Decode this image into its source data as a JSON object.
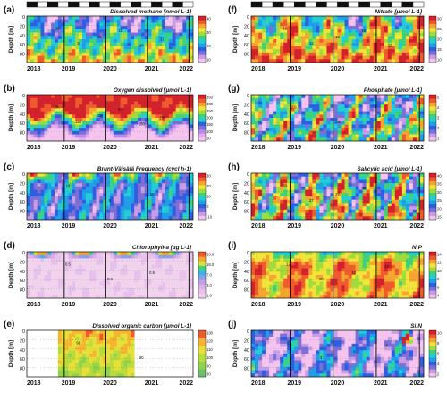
{
  "figure": {
    "season_bar": {
      "segments": 16,
      "colors": [
        "#111111",
        "#ffffff"
      ]
    },
    "y_label": "Depth [m]",
    "depth_ticks": [
      "0",
      "20",
      "40",
      "60",
      "80"
    ],
    "years": [
      "2018",
      "2019",
      "2020",
      "2021",
      "2022"
    ]
  },
  "chart_data": [
    {
      "type": "heatmap",
      "letter": "(a)",
      "title": "Dissolved methane [nmol L-1]",
      "palette": "jet",
      "colorbar_ticks": [
        "40",
        "30",
        "20",
        "10"
      ],
      "contour_labels": [
        "20",
        "5",
        "25",
        "15",
        "40",
        "15"
      ],
      "events_x": [
        2018.9,
        2019.9,
        2020.9,
        2021.9
      ],
      "ylim": [
        100,
        0
      ]
    },
    {
      "type": "heatmap",
      "letter": "(b)",
      "title": "Oxygen dissolved [µmol L-1]",
      "palette": "oxy",
      "colorbar_ticks": [
        "350",
        "300",
        "250",
        "200",
        "150",
        "100",
        "50"
      ],
      "contour_labels": [
        "200",
        "150",
        "100",
        "0.5",
        "150",
        "100"
      ],
      "events_x": [
        2018.9,
        2019.9,
        2020.9,
        2021.9
      ],
      "ylim": [
        100,
        0
      ]
    },
    {
      "type": "heatmap",
      "letter": "(c)",
      "title": "Brunt-Väisälä Frequency (cycl h-1)",
      "palette": "jet",
      "colorbar_ticks": [
        "30",
        "20",
        "10",
        "0",
        "-10"
      ],
      "contour_labels": [
        "10",
        "5",
        "10"
      ],
      "events_x": [
        2018.9,
        2019.9,
        2020.9,
        2021.9
      ],
      "ylim": [
        100,
        0
      ]
    },
    {
      "type": "heatmap",
      "letter": "(d)",
      "title": "Chlorophyll-a [µg L-1]",
      "palette": "chl",
      "colorbar_ticks": [
        "33.0",
        "18.0",
        "7.0",
        "3.0",
        "1.0"
      ],
      "contour_labels": [
        "0.5",
        "0.5",
        "0.5"
      ],
      "events_x": [
        2018.9,
        2019.9,
        2020.9,
        2021.9
      ],
      "ylim": [
        100,
        0
      ]
    },
    {
      "type": "heatmap",
      "letter": "(e)",
      "title": "Dissolved organic carbon [µmol L-1]",
      "palette": "doc",
      "colorbar_ticks": [
        "130",
        "120",
        "110",
        "100",
        "90",
        "80"
      ],
      "contour_labels": [
        "90",
        "90"
      ],
      "data_span": [
        2018.75,
        2020.6
      ],
      "events_x": [
        2018.9,
        2019.9
      ],
      "ylim": [
        100,
        0
      ]
    },
    {
      "type": "heatmap",
      "letter": "(f)",
      "title": "Nitrate [µmol L-1]",
      "palette": "jet",
      "colorbar_ticks": [
        "30",
        "25",
        "20",
        "15",
        "10"
      ],
      "contour_labels": [
        "18",
        "12",
        "18",
        "18",
        "12"
      ],
      "events_x": [
        2018.9,
        2019.9,
        2020.9,
        2021.9
      ],
      "ylim": [
        100,
        0
      ]
    },
    {
      "type": "heatmap",
      "letter": "(g)",
      "title": "Phosphate [µmol L-1]",
      "palette": "jet",
      "colorbar_ticks": [
        "5",
        "4",
        "3",
        "2",
        "1"
      ],
      "contour_labels": [
        "2.0",
        "3.5",
        "3.5"
      ],
      "events_x": [
        2018.9,
        2019.9,
        2020.9,
        2021.9
      ],
      "ylim": [
        100,
        0
      ]
    },
    {
      "type": "heatmap",
      "letter": "(h)",
      "title": "Salicylic acid [µmol L-1]",
      "palette": "jet",
      "colorbar_ticks": [
        "40",
        "35",
        "30",
        "25",
        "20",
        "15"
      ],
      "contour_labels": [
        "33",
        "27",
        "27",
        "40",
        "33"
      ],
      "events_x": [
        2018.9,
        2019.9,
        2020.9,
        2021.9
      ],
      "ylim": [
        100,
        0
      ]
    },
    {
      "type": "heatmap",
      "letter": "(i)",
      "title": "N:P",
      "palette": "jet",
      "colorbar_ticks": [
        "14",
        "12",
        "10",
        "8",
        "6",
        "4"
      ],
      "contour_labels": [
        "12",
        "10",
        "10",
        "12"
      ],
      "events_x": [
        2018.9,
        2019.9,
        2020.9,
        2021.9
      ],
      "ylim": [
        100,
        0
      ]
    },
    {
      "type": "heatmap",
      "letter": "(j)",
      "title": "Si:N",
      "palette": "jet",
      "colorbar_ticks": [
        "10",
        "8",
        "6",
        "4",
        "2"
      ],
      "contour_labels": [
        "2",
        "3",
        "4",
        "2"
      ],
      "events_x": [
        2018.9,
        2019.9,
        2020.9,
        2021.9
      ],
      "ylim": [
        100,
        0
      ]
    }
  ]
}
